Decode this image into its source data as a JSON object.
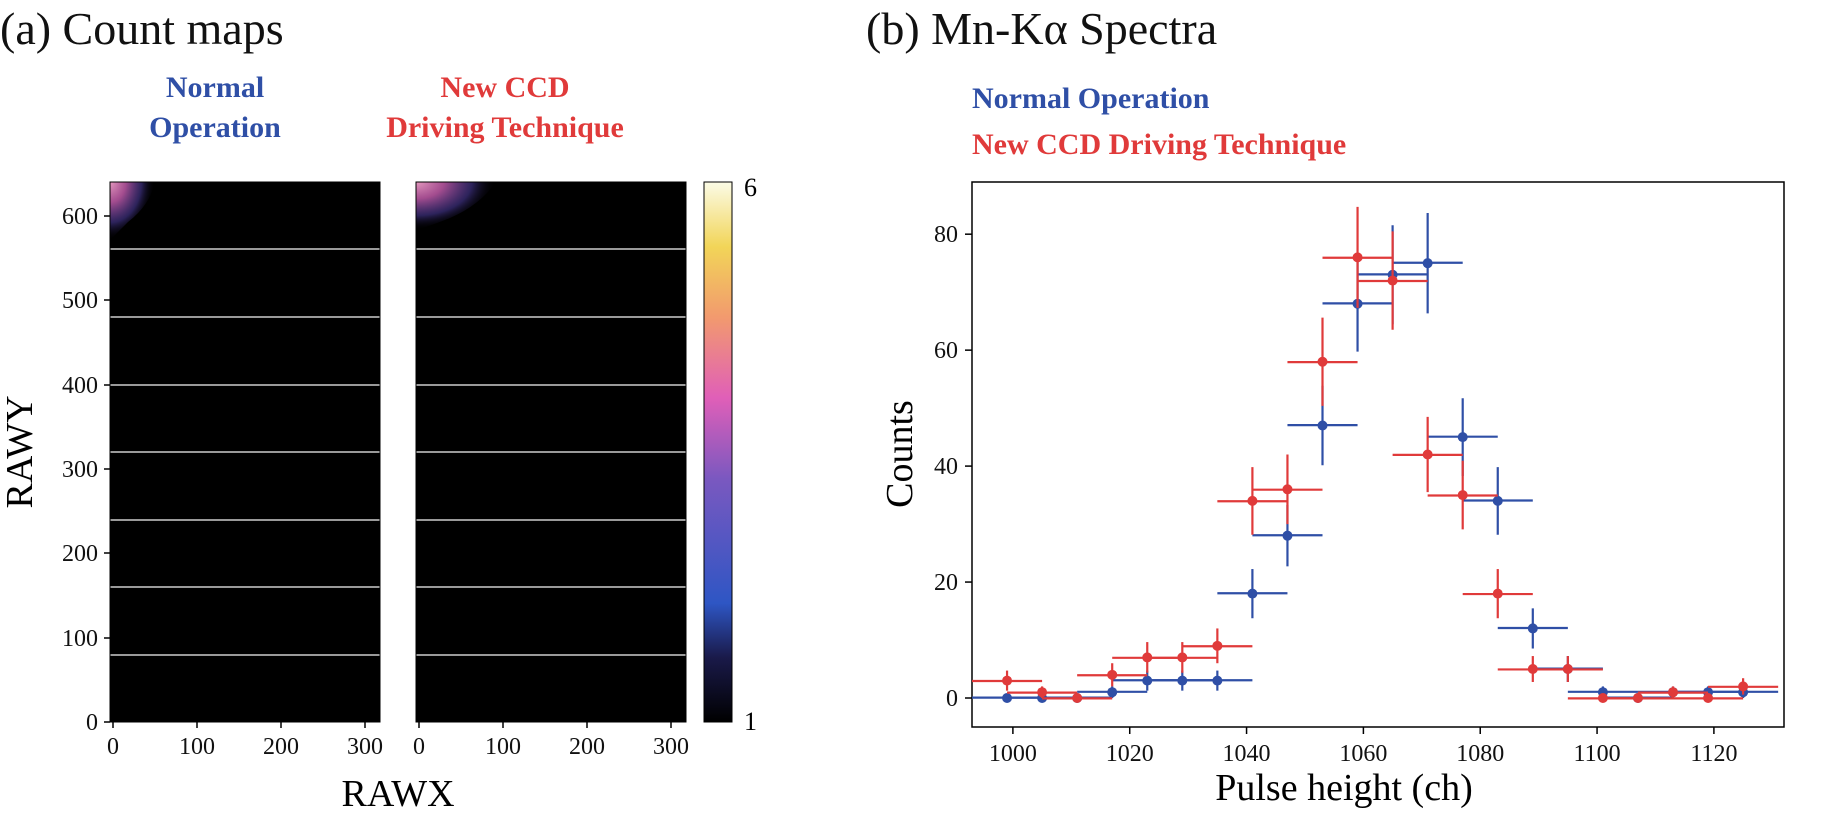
{
  "panel_a": {
    "title": "(a) Count maps",
    "maps": [
      {
        "title_lines": [
          "Normal",
          "Operation"
        ],
        "color": "#2f4fa6"
      },
      {
        "title_lines": [
          "New CCD",
          "Driving Technique"
        ],
        "color": "#e03a3a"
      }
    ],
    "ylabel": "RAWY",
    "xlabel": "RAWX",
    "yticks": [
      "0",
      "100",
      "200",
      "300",
      "400",
      "500",
      "600"
    ],
    "xticks": [
      "0",
      "100",
      "200",
      "300"
    ],
    "colorbar": {
      "min": "1",
      "max": "6"
    }
  },
  "panel_b": {
    "title": "(b) Mn-Kα Spectra",
    "legend": [
      {
        "label": "Normal Operation",
        "color": "#2f4fa6"
      },
      {
        "label": "New CCD Driving Technique",
        "color": "#e03a3a"
      }
    ]
  },
  "chart_data": [
    {
      "type": "heatmap",
      "title": "Count maps",
      "xlabel": "RAWX",
      "ylabel": "RAWY",
      "xlim": [
        0,
        320
      ],
      "ylim": [
        0,
        640
      ],
      "colorbar_range": [
        1,
        6
      ],
      "series": [
        {
          "name": "Normal Operation",
          "hotspot": "top-left corner"
        },
        {
          "name": "New CCD Driving Technique",
          "hotspot": "top-left corner"
        }
      ]
    },
    {
      "type": "scatter",
      "title": "Mn-Kα Spectra",
      "xlabel": "Pulse height (ch)",
      "ylabel": "Counts",
      "xlim": [
        993,
        1132
      ],
      "ylim": [
        -5,
        89
      ],
      "xticks": [
        1000,
        1020,
        1040,
        1060,
        1080,
        1100,
        1120
      ],
      "yticks": [
        0,
        20,
        40,
        60,
        80
      ],
      "bin_halfwidth": 6,
      "series": [
        {
          "name": "Normal Operation",
          "color": "#2f4fa6",
          "x": [
            999,
            1005,
            1011,
            1017,
            1023,
            1029,
            1035,
            1041,
            1047,
            1053,
            1059,
            1065,
            1071,
            1077,
            1083,
            1089,
            1095,
            1101,
            1107,
            1113,
            1119,
            1125
          ],
          "y": [
            0,
            0,
            0,
            1,
            3,
            3,
            3,
            18,
            28,
            47,
            68,
            73,
            75,
            45,
            34,
            12,
            5,
            1,
            0,
            1,
            1,
            1
          ]
        },
        {
          "name": "New CCD Driving Technique",
          "color": "#e03a3a",
          "x": [
            999,
            1005,
            1011,
            1017,
            1023,
            1029,
            1035,
            1041,
            1047,
            1053,
            1059,
            1065,
            1071,
            1077,
            1083,
            1089,
            1095,
            1101,
            1107,
            1113,
            1119,
            1125
          ],
          "y": [
            3,
            1,
            0,
            4,
            7,
            7,
            9,
            34,
            36,
            58,
            76,
            72,
            42,
            35,
            18,
            5,
            5,
            0,
            0,
            1,
            0,
            2
          ]
        }
      ]
    }
  ]
}
